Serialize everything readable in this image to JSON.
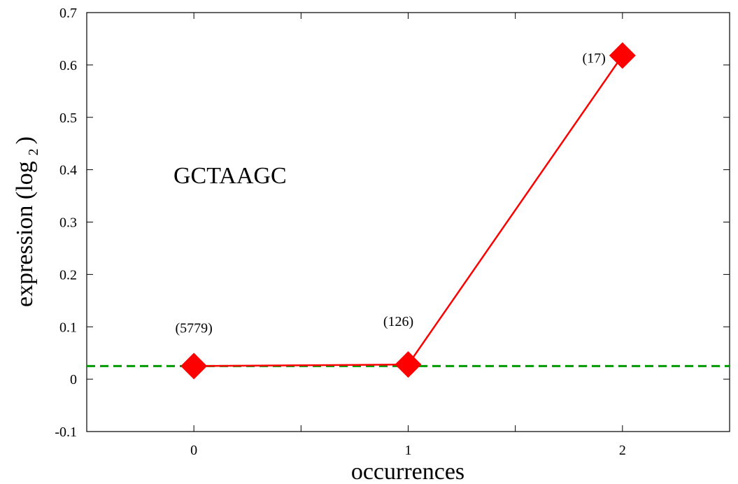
{
  "chart_data": {
    "type": "line",
    "x": [
      0,
      1,
      2
    ],
    "series": [
      {
        "values": [
          0.025,
          0.028,
          0.618
        ],
        "color": "#ff0000",
        "marker": "diamond"
      }
    ],
    "point_labels": [
      "(5779)",
      "(126)",
      "(17)"
    ],
    "reference_line": {
      "y": 0.025,
      "style": "dashed",
      "color": "#009900"
    },
    "annotation": "GCTAAGC",
    "xlabel": "occurrences",
    "ylabel_main": "expression (log",
    "ylabel_sub": "2",
    "ylabel_close": ")",
    "xlim": [
      -0.5,
      2.5
    ],
    "ylim": [
      -0.1,
      0.7
    ],
    "xticks": [
      0,
      1,
      2
    ],
    "xtick_labels": [
      "0",
      "1",
      "2"
    ],
    "yticks": [
      -0.1,
      0,
      0.1,
      0.2,
      0.3,
      0.4,
      0.5,
      0.6,
      0.7
    ],
    "ytick_labels": [
      "-0.1",
      "0",
      "0.1",
      "0.2",
      "0.3",
      "0.4",
      "0.5",
      "0.6",
      "0.7"
    ],
    "grid": false
  }
}
